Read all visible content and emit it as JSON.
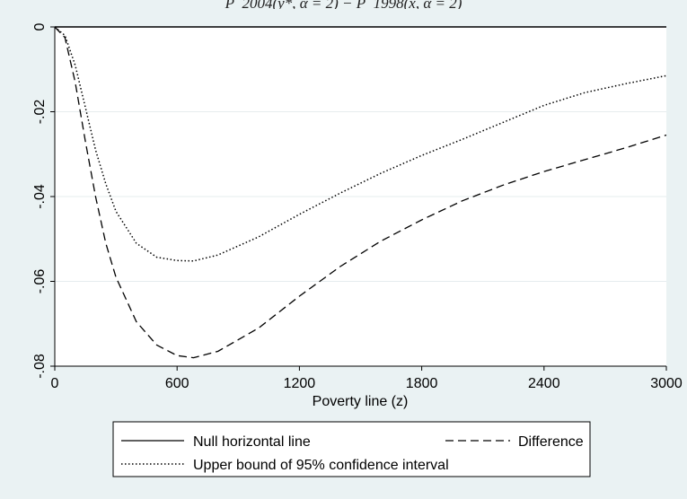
{
  "header": {
    "formula": "P_2004(y*, α = 2) − P_1998(x, α = 2)"
  },
  "chart_data": {
    "type": "line",
    "title": "",
    "xlabel": "Poverty line (z)",
    "ylabel": "",
    "xlim": [
      0,
      3000
    ],
    "ylim": [
      -0.08,
      0
    ],
    "xticks": [
      0,
      600,
      1200,
      1800,
      2400,
      3000
    ],
    "xtick_labels": [
      "0",
      "600",
      "1200",
      "1800",
      "2400",
      "3000"
    ],
    "yticks": [
      0,
      -0.02,
      -0.04,
      -0.06,
      -0.08
    ],
    "ytick_labels": [
      "0",
      "-.02",
      "-.04",
      "-.06",
      "-.08"
    ],
    "grid": true,
    "legend_position": "bottom",
    "series": [
      {
        "name": "Null horizontal line",
        "style": "solid",
        "x": [
          0,
          3000
        ],
        "y": [
          0,
          0
        ]
      },
      {
        "name": "Difference",
        "style": "dashed",
        "x": [
          0,
          50,
          100,
          150,
          200,
          250,
          300,
          400,
          500,
          600,
          680,
          800,
          1000,
          1200,
          1400,
          1600,
          1800,
          2000,
          2200,
          2400,
          2600,
          2800,
          3000
        ],
        "y": [
          0,
          -0.0025,
          -0.013,
          -0.027,
          -0.04,
          -0.051,
          -0.059,
          -0.0695,
          -0.075,
          -0.0775,
          -0.078,
          -0.0765,
          -0.071,
          -0.0635,
          -0.0565,
          -0.0505,
          -0.0455,
          -0.041,
          -0.0373,
          -0.0341,
          -0.0313,
          -0.0285,
          -0.0255
        ]
      },
      {
        "name": "Upper bound of 95% confidence interval",
        "style": "dotted",
        "x": [
          0,
          50,
          100,
          150,
          200,
          250,
          300,
          400,
          500,
          600,
          680,
          800,
          1000,
          1200,
          1400,
          1600,
          1800,
          2000,
          2200,
          2400,
          2600,
          2800,
          3000
        ],
        "y": [
          0,
          -0.002,
          -0.009,
          -0.019,
          -0.029,
          -0.037,
          -0.0435,
          -0.051,
          -0.0543,
          -0.0551,
          -0.0552,
          -0.0538,
          -0.0495,
          -0.0442,
          -0.0392,
          -0.0345,
          -0.0303,
          -0.0265,
          -0.0225,
          -0.0185,
          -0.0155,
          -0.0134,
          -0.0115
        ]
      }
    ]
  }
}
